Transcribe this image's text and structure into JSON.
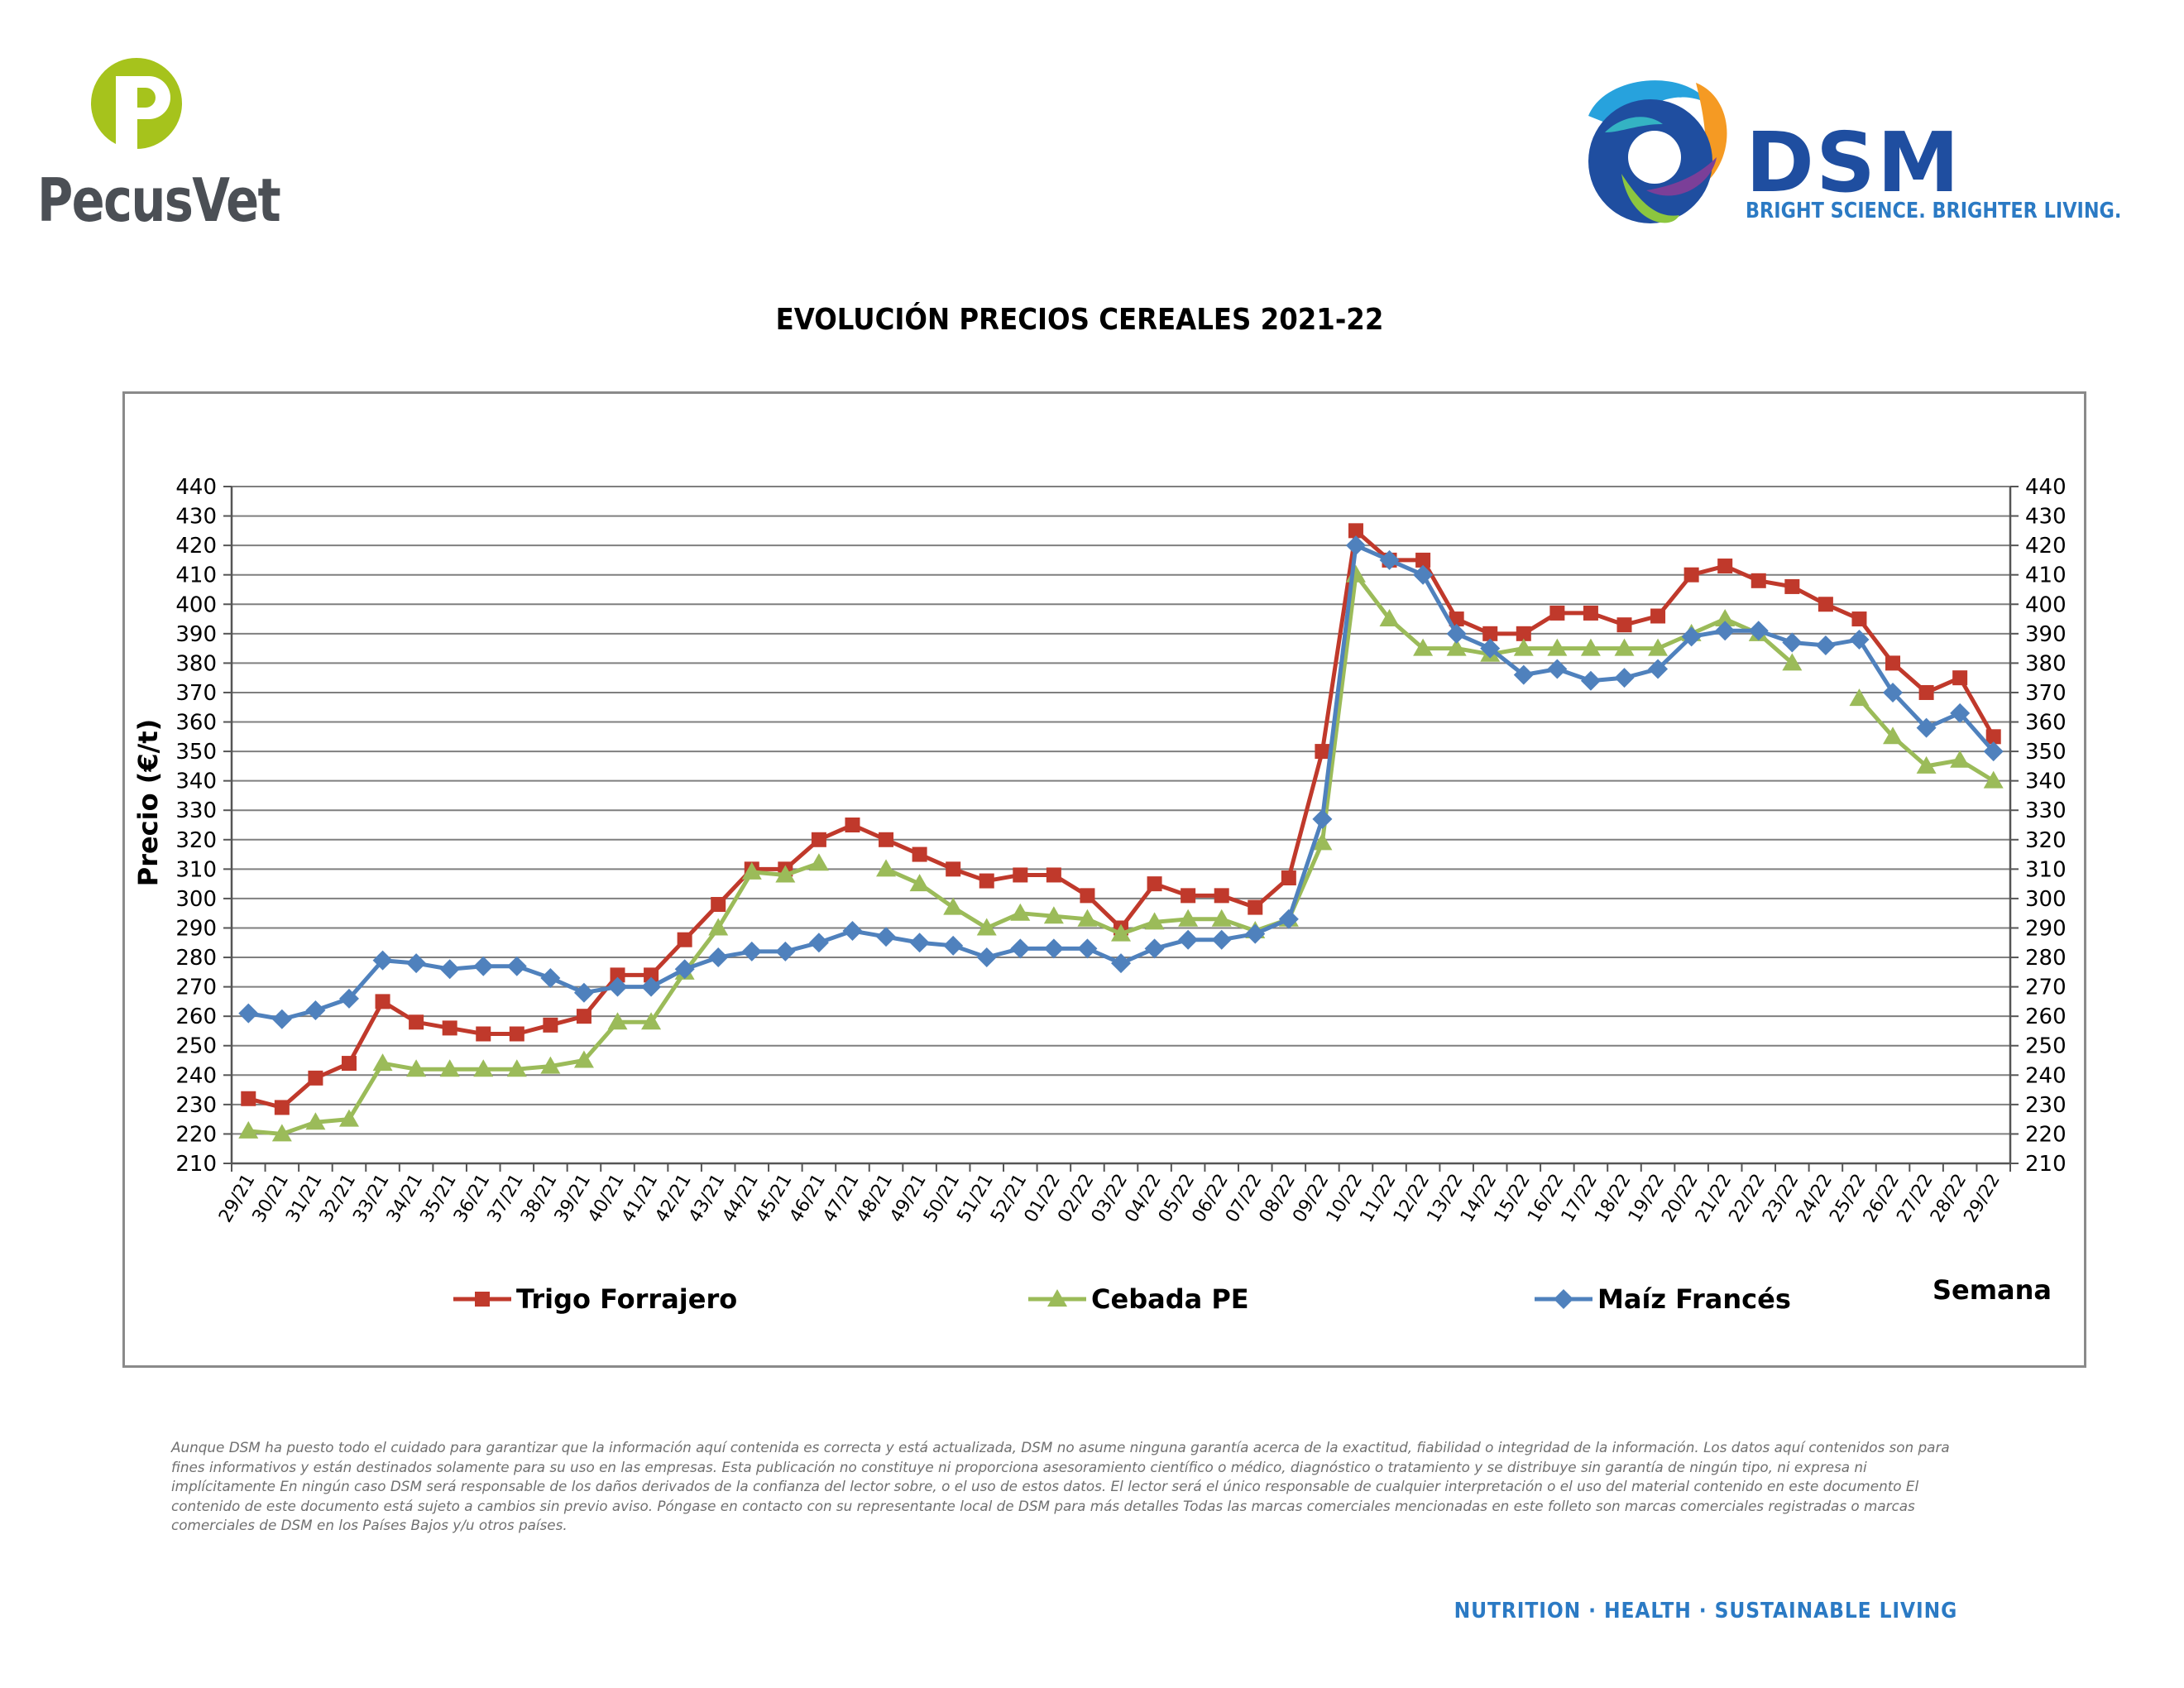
{
  "header": {
    "left_brand": "PecusVet",
    "right_brand": "DSM",
    "right_tagline": "BRIGHT SCIENCE. BRIGHTER LIVING."
  },
  "colors": {
    "trigo": "#c0392b",
    "cebada": "#9bbb59",
    "maiz": "#4f81bd",
    "pecus_green": "#a6c31c",
    "pecus_grey": "#4b4f55",
    "dsm_blue": "#1f4ea0"
  },
  "chart_data": {
    "type": "line",
    "title": "EVOLUCIÓN PRECIOS CEREALES 2021-22",
    "ylabel": "Precio (€/t)",
    "xlabel": "Semana",
    "ylim": [
      210,
      440
    ],
    "y_ticks": [
      210,
      220,
      230,
      240,
      250,
      260,
      270,
      280,
      290,
      300,
      310,
      320,
      330,
      340,
      350,
      360,
      370,
      380,
      390,
      400,
      410,
      420,
      430,
      440
    ],
    "grid": true,
    "secondary_y_axis": true,
    "legend_position": "bottom",
    "categories": [
      "29/21",
      "30/21",
      "31/21",
      "32/21",
      "33/21",
      "34/21",
      "35/21",
      "36/21",
      "37/21",
      "38/21",
      "39/21",
      "40/21",
      "41/21",
      "42/21",
      "43/21",
      "44/21",
      "45/21",
      "46/21",
      "47/21",
      "48/21",
      "49/21",
      "50/21",
      "51/21",
      "52/21",
      "01/22",
      "02/22",
      "03/22",
      "04/22",
      "05/22",
      "06/22",
      "07/22",
      "08/22",
      "09/22",
      "10/22",
      "11/22",
      "12/22",
      "13/22",
      "14/22",
      "15/22",
      "16/22",
      "17/22",
      "18/22",
      "19/22",
      "20/22",
      "21/22",
      "22/22",
      "23/22",
      "24/22",
      "25/22",
      "26/22",
      "27/22",
      "28/22",
      "29/22"
    ],
    "series": [
      {
        "name": "Trigo Forrajero",
        "marker": "square",
        "values": [
          232,
          229,
          239,
          244,
          265,
          258,
          256,
          254,
          254,
          257,
          260,
          274,
          274,
          286,
          298,
          310,
          310,
          320,
          325,
          320,
          315,
          310,
          306,
          308,
          308,
          301,
          290,
          305,
          301,
          301,
          297,
          307,
          350,
          425,
          415,
          415,
          395,
          390,
          390,
          397,
          397,
          393,
          396,
          410,
          413,
          408,
          406,
          400,
          395,
          380,
          370,
          375,
          355
        ]
      },
      {
        "name": "Cebada PE",
        "marker": "triangle",
        "values": [
          221,
          220,
          224,
          225,
          244,
          242,
          242,
          242,
          242,
          243,
          245,
          258,
          258,
          275,
          290,
          309,
          308,
          312,
          null,
          310,
          305,
          297,
          290,
          295,
          294,
          293,
          288,
          292,
          293,
          293,
          289,
          293,
          319,
          410,
          395,
          385,
          385,
          383,
          385,
          385,
          385,
          385,
          385,
          390,
          395,
          390,
          380,
          null,
          368,
          355,
          345,
          347,
          340
        ]
      },
      {
        "name": "Maíz Francés",
        "marker": "diamond",
        "values": [
          261,
          259,
          262,
          266,
          279,
          278,
          276,
          277,
          277,
          273,
          268,
          270,
          270,
          276,
          280,
          282,
          282,
          285,
          289,
          287,
          285,
          284,
          280,
          283,
          283,
          283,
          278,
          283,
          286,
          286,
          288,
          293,
          327,
          420,
          415,
          410,
          390,
          385,
          376,
          378,
          374,
          375,
          378,
          389,
          391,
          391,
          387,
          386,
          388,
          370,
          358,
          363,
          350
        ]
      }
    ]
  },
  "disclaimer": "Aunque DSM ha puesto todo el cuidado para garantizar que la información aquí contenida es correcta y está actualizada, DSM no asume ninguna garantía acerca de la exactitud, fiabilidad o integridad de la información. Los datos aquí contenidos son para fines informativos y están destinados solamente para su uso en las empresas. Esta publicación no constituye ni proporciona asesoramiento científico o médico, diagnóstico o tratamiento y se distribuye sin garantía de ningún tipo, ni expresa ni implícitamente En ningún caso DSM será responsable de los daños derivados de la confianza del lector sobre, o el uso de estos datos. El lector será el único responsable de cualquier interpretación o el uso del material contenido en este documento El contenido de este documento está sujeto a cambios sin previo aviso. Póngase en contacto con su representante local de DSM para más detalles Todas las marcas comerciales mencionadas en este folleto son marcas comerciales registradas o marcas comerciales de DSM en los Países Bajos y/u otros países.",
  "footer": {
    "tagline": "NUTRITION · HEALTH · SUSTAINABLE LIVING"
  }
}
